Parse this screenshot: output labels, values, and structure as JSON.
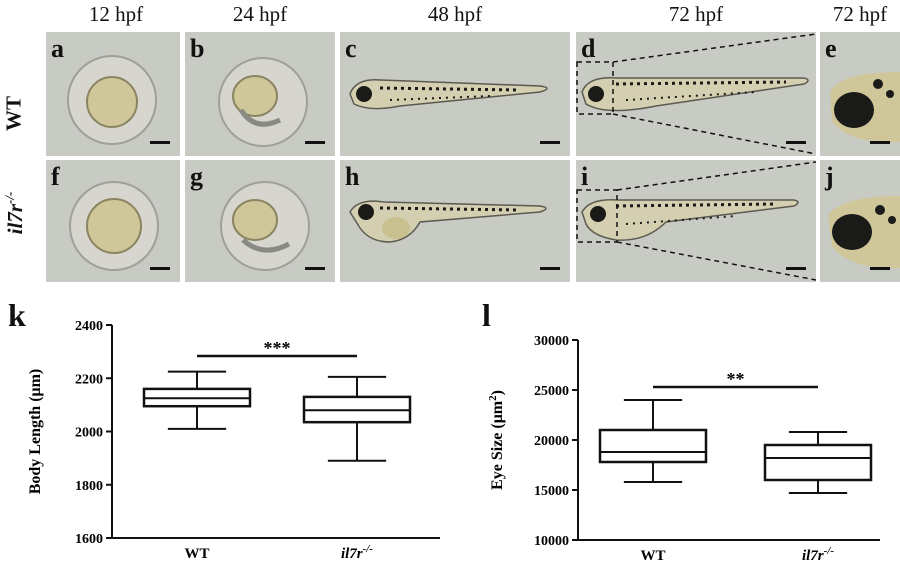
{
  "figure": {
    "time_labels": [
      "12 hpf",
      "24 hpf",
      "48 hpf",
      "72 hpf",
      "72 hpf"
    ],
    "row_labels": {
      "wt": "WT",
      "mutant": "il7r",
      "mutant_sup": "-/-"
    },
    "panels_top": [
      "a",
      "b",
      "c",
      "d",
      "e"
    ],
    "panels_bottom": [
      "f",
      "g",
      "h",
      "i",
      "j"
    ],
    "colors": {
      "background": "#c8cac4",
      "embryo": "#cfc79a",
      "pigment": "#1a1a18"
    }
  },
  "chart_data": [
    {
      "type": "box",
      "letter": "k",
      "ylabel": "Body Length (μm)",
      "categories": [
        "WT",
        "il7r"
      ],
      "category_sup": [
        "",
        "-/-"
      ],
      "ylim": [
        1600,
        2400
      ],
      "yticks": [
        1600,
        1800,
        2000,
        2200,
        2400
      ],
      "boxes": [
        {
          "min": 2010,
          "q1": 2095,
          "median": 2125,
          "q3": 2160,
          "max": 2225
        },
        {
          "min": 1890,
          "q1": 2035,
          "median": 2080,
          "q3": 2130,
          "max": 2205
        }
      ],
      "significance": "***"
    },
    {
      "type": "box",
      "letter": "l",
      "ylabel": "Eye Size (μm",
      "ylabel_sup": "2",
      "ylabel_tail": ")",
      "categories": [
        "WT",
        "il7r"
      ],
      "category_sup": [
        "",
        "-/-"
      ],
      "ylim": [
        10000,
        30000
      ],
      "yticks": [
        10000,
        15000,
        20000,
        25000,
        30000
      ],
      "boxes": [
        {
          "min": 15800,
          "q1": 17800,
          "median": 18800,
          "q3": 21000,
          "max": 24000
        },
        {
          "min": 14700,
          "q1": 16000,
          "median": 18200,
          "q3": 19500,
          "max": 20800
        }
      ],
      "significance": "**"
    }
  ]
}
